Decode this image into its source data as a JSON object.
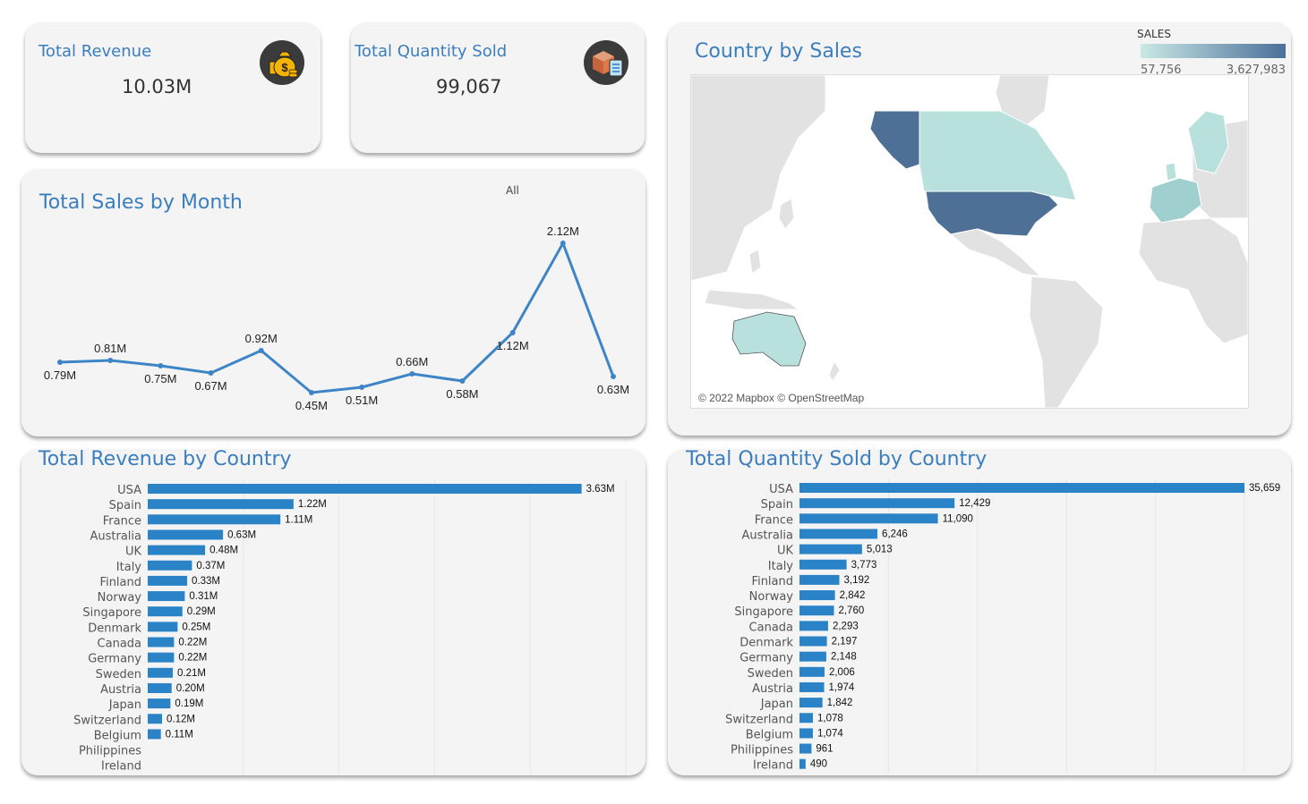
{
  "kpis": {
    "revenue": {
      "title": "Total Revenue",
      "value": "10.03M",
      "icon": "money-bag-icon"
    },
    "quantity": {
      "title": "Total Quantity Sold",
      "value": "99,067",
      "icon": "box-checklist-icon"
    }
  },
  "month_chart": {
    "title": "Total Sales by Month",
    "filter": "All",
    "chart_data": {
      "type": "line",
      "x": [
        1,
        2,
        3,
        4,
        5,
        6,
        7,
        8,
        9,
        10,
        11,
        12
      ],
      "values": [
        0.79,
        0.81,
        0.75,
        0.67,
        0.92,
        0.45,
        0.51,
        0.66,
        0.58,
        1.12,
        2.12,
        0.63
      ],
      "labels": [
        "0.79M",
        "0.81M",
        "0.75M",
        "0.67M",
        "0.92M",
        "0.45M",
        "0.51M",
        "0.66M",
        "0.58M",
        "1.12M",
        "2.12M",
        "0.63M"
      ],
      "label_pos": [
        "below",
        "above",
        "below",
        "below",
        "above",
        "below",
        "below",
        "above",
        "below",
        "below",
        "above",
        "below"
      ],
      "ylim": [
        0,
        2.2
      ],
      "color": "#3d85c6"
    }
  },
  "map": {
    "title": "Country by Sales",
    "legend_title": "SALES",
    "legend_min": "57,756",
    "legend_max": "3,627,983",
    "attribution": "© 2022 Mapbox © OpenStreetMap",
    "color_low": "#b8e0dc",
    "color_high": "#4a6f9a"
  },
  "revenue_chart": {
    "title": "Total Revenue by Country",
    "chart_data": {
      "type": "bar",
      "categories": [
        "USA",
        "Spain",
        "France",
        "Australia",
        "UK",
        "Italy",
        "Finland",
        "Norway",
        "Singapore",
        "Denmark",
        "Canada",
        "Germany",
        "Sweden",
        "Austria",
        "Japan",
        "Switzerland",
        "Belgium",
        "Philippines",
        "Ireland"
      ],
      "values": [
        3.63,
        1.22,
        1.11,
        0.63,
        0.48,
        0.37,
        0.33,
        0.31,
        0.29,
        0.25,
        0.22,
        0.22,
        0.21,
        0.2,
        0.19,
        0.12,
        0.11,
        null,
        null
      ],
      "labels": [
        "3.63M",
        "1.22M",
        "1.11M",
        "0.63M",
        "0.48M",
        "0.37M",
        "0.33M",
        "0.31M",
        "0.29M",
        "0.25M",
        "0.22M",
        "0.22M",
        "0.21M",
        "0.20M",
        "0.19M",
        "0.12M",
        "0.11M",
        "",
        ""
      ],
      "xlim": [
        0,
        4.0
      ],
      "color": "#2a83c6"
    }
  },
  "quantity_chart": {
    "title": "Total Quantity Sold by Country",
    "chart_data": {
      "type": "bar",
      "categories": [
        "USA",
        "Spain",
        "France",
        "Australia",
        "UK",
        "Italy",
        "Finland",
        "Norway",
        "Singapore",
        "Canada",
        "Denmark",
        "Germany",
        "Sweden",
        "Austria",
        "Japan",
        "Switzerland",
        "Belgium",
        "Philippines",
        "Ireland"
      ],
      "values": [
        35659,
        12429,
        11090,
        6246,
        5013,
        3773,
        3192,
        2842,
        2760,
        2293,
        2197,
        2148,
        2006,
        1974,
        1842,
        1078,
        1074,
        961,
        490
      ],
      "labels": [
        "35,659",
        "12,429",
        "11,090",
        "6,246",
        "5,013",
        "3,773",
        "3,192",
        "2,842",
        "2,760",
        "2,293",
        "2,197",
        "2,148",
        "2,006",
        "1,974",
        "1,842",
        "1,078",
        "1,074",
        "961",
        "490"
      ],
      "xlim": [
        0,
        35659
      ],
      "color": "#2a83c6"
    }
  }
}
